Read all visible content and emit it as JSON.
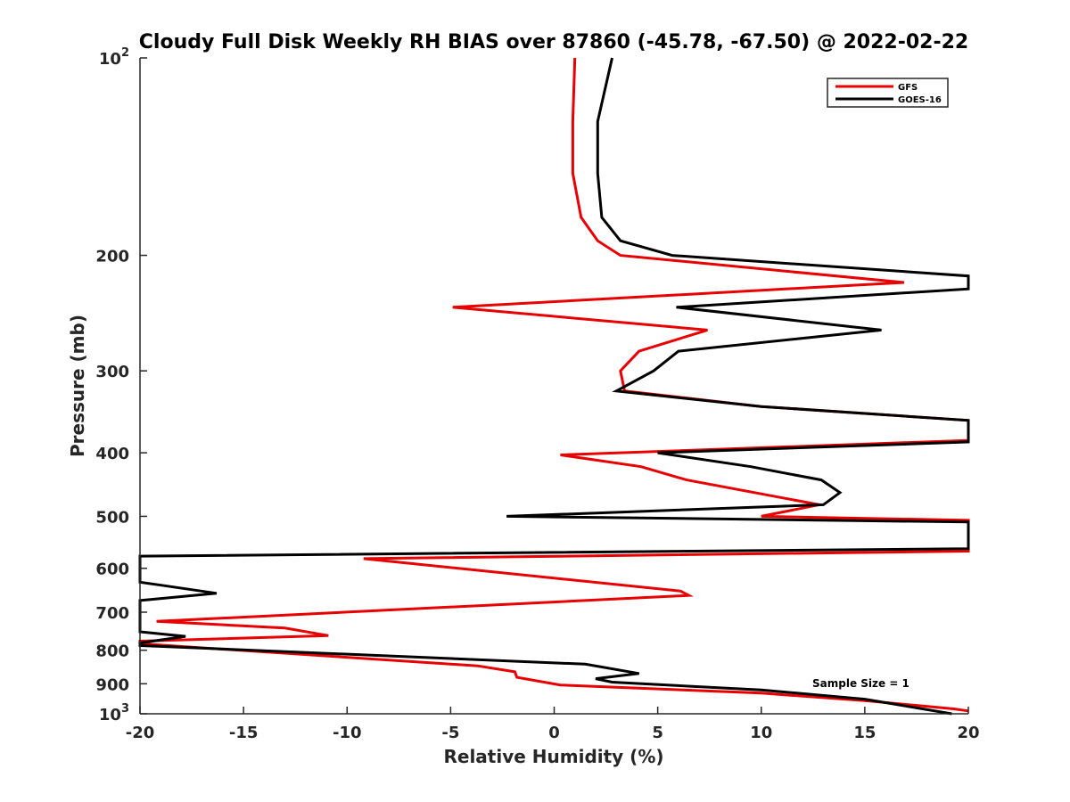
{
  "chart_data": {
    "type": "line",
    "title": "Cloudy Full Disk Weekly RH BIAS over 87860 (-45.78, -67.50) @ 2022-02-22",
    "xlabel": "Relative Humidity (%)",
    "ylabel": "Pressure (mb)",
    "xlim": [
      -20,
      20
    ],
    "ylim": [
      100,
      1000
    ],
    "yscale": "log",
    "y_reversed": true,
    "x_ticks": [
      "-20",
      "-15",
      "-10",
      "-5",
      "0",
      "5",
      "10",
      "15",
      "20"
    ],
    "y_ticks": [
      {
        "value": 100,
        "base": "10",
        "exp": "2"
      },
      {
        "value": 200,
        "label": "200"
      },
      {
        "value": 300,
        "label": "300"
      },
      {
        "value": 400,
        "label": "400"
      },
      {
        "value": 500,
        "label": "500"
      },
      {
        "value": 600,
        "label": "600"
      },
      {
        "value": 700,
        "label": "700"
      },
      {
        "value": 800,
        "label": "800"
      },
      {
        "value": 900,
        "label": "900"
      },
      {
        "value": 1000,
        "base": "10",
        "exp": "3"
      }
    ],
    "legend_position": "top-right",
    "annotation": "Sample Size = 1",
    "series": [
      {
        "name": "GFS",
        "color": "#e80000",
        "points": [
          [
            1.0,
            100
          ],
          [
            0.9,
            125
          ],
          [
            0.9,
            150
          ],
          [
            1.3,
            175
          ],
          [
            2.1,
            190
          ],
          [
            3.2,
            200
          ],
          [
            16.9,
            220
          ],
          [
            -4.9,
            240
          ],
          [
            7.4,
            260
          ],
          [
            4.1,
            280
          ],
          [
            3.2,
            300
          ],
          [
            3.4,
            322
          ],
          [
            10,
            340
          ],
          [
            20,
            357
          ],
          [
            20,
            383
          ],
          [
            0.3,
            403
          ],
          [
            4.2,
            420
          ],
          [
            6.4,
            440
          ],
          [
            12.8,
            480
          ],
          [
            10.0,
            500
          ],
          [
            20,
            507
          ],
          [
            20,
            565
          ],
          [
            -9.2,
            580
          ],
          [
            6.1,
            650
          ],
          [
            6.5,
            660
          ],
          [
            -19.2,
            723
          ],
          [
            -13,
            740
          ],
          [
            -10.9,
            760
          ],
          [
            -20,
            775
          ],
          [
            -20,
            782
          ],
          [
            -3.7,
            845
          ],
          [
            -1.9,
            863
          ],
          [
            -1.8,
            880
          ],
          [
            0.3,
            904
          ],
          [
            10,
            930
          ],
          [
            15,
            955
          ],
          [
            19.3,
            983
          ],
          [
            20,
            990
          ]
        ]
      },
      {
        "name": "GOES-16",
        "color": "#000000",
        "points": [
          [
            2.8,
            100
          ],
          [
            2.1,
            125
          ],
          [
            2.1,
            150
          ],
          [
            2.3,
            175
          ],
          [
            3.2,
            190
          ],
          [
            5.7,
            200
          ],
          [
            20,
            215
          ],
          [
            20,
            225
          ],
          [
            5.9,
            240
          ],
          [
            15.8,
            260
          ],
          [
            6.0,
            280
          ],
          [
            4.8,
            300
          ],
          [
            3.0,
            322
          ],
          [
            10,
            340
          ],
          [
            20,
            357
          ],
          [
            20,
            385
          ],
          [
            5.0,
            400
          ],
          [
            9.5,
            420
          ],
          [
            12.9,
            440
          ],
          [
            13.8,
            460
          ],
          [
            13.0,
            480
          ],
          [
            -2.3,
            500
          ],
          [
            20,
            510
          ],
          [
            20,
            560
          ],
          [
            -20,
            575
          ],
          [
            -20,
            630
          ],
          [
            -18.8,
            638
          ],
          [
            -16.3,
            655
          ],
          [
            -20,
            672
          ],
          [
            -20,
            750
          ],
          [
            -17.8,
            762
          ],
          [
            -20,
            780
          ],
          [
            -20,
            787
          ],
          [
            1.5,
            840
          ],
          [
            4.1,
            868
          ],
          [
            2.0,
            884
          ],
          [
            2.8,
            895
          ],
          [
            10,
            920
          ],
          [
            15,
            950
          ],
          [
            19.2,
            1000
          ]
        ]
      }
    ]
  }
}
